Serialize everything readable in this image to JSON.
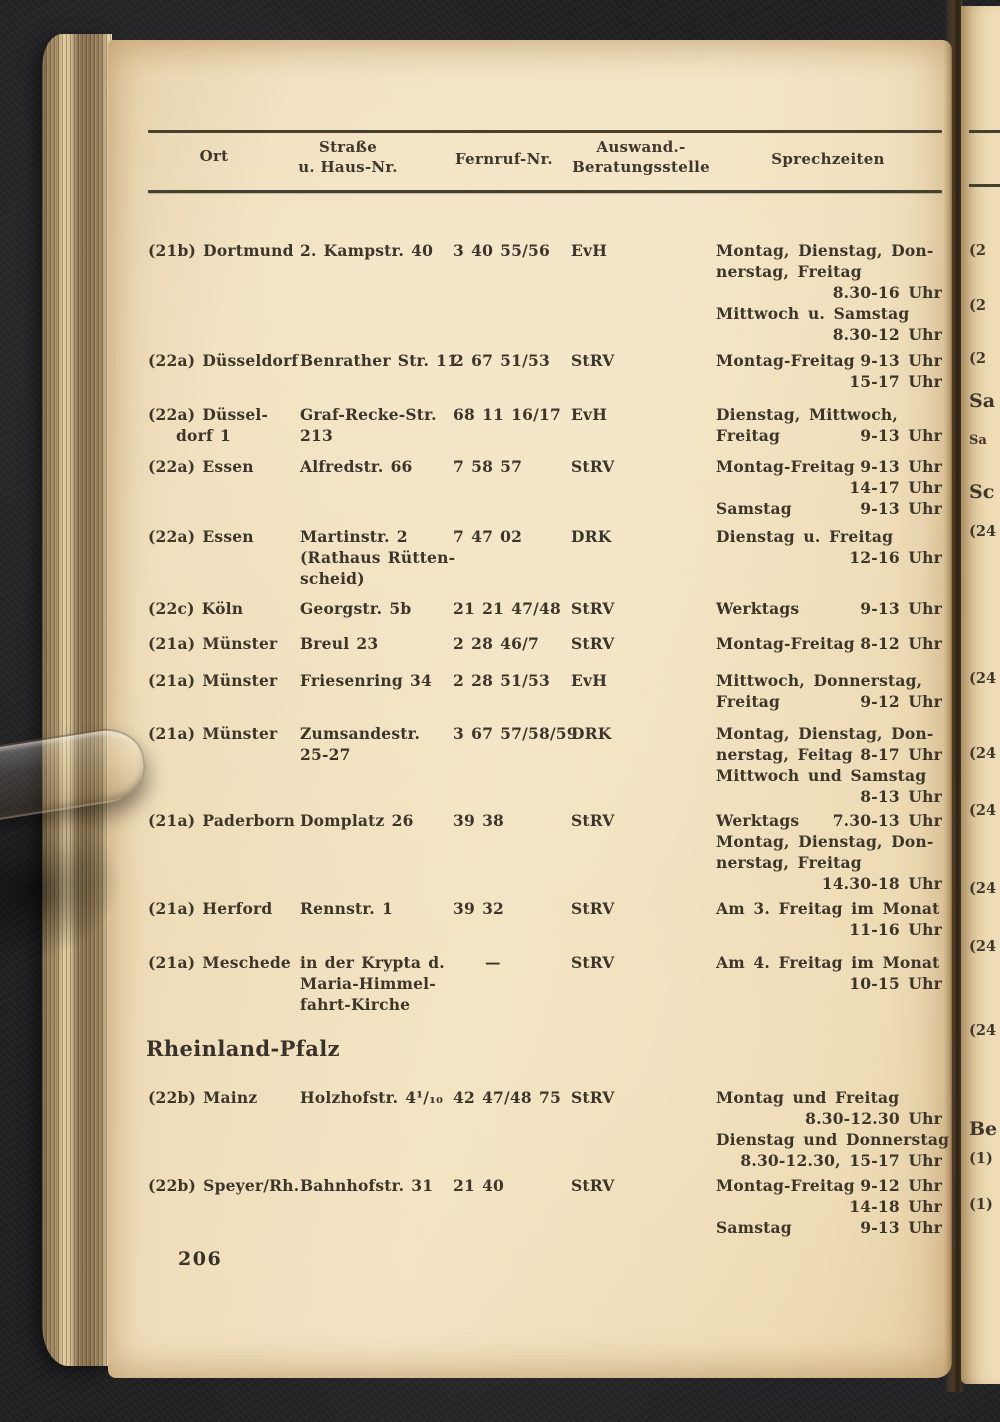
{
  "page": {
    "number": "206",
    "paper_color": "#efddb9",
    "ink_color": "#3b352a",
    "background_color": "#212123"
  },
  "table": {
    "headers": {
      "ort": "Ort",
      "strasse_line1": "Straße",
      "strasse_line2": "u. Haus-Nr.",
      "fernruf": "Fernruf-Nr.",
      "stelle_line1": "Auswand.-",
      "stelle_line2": "Beratungsstelle",
      "zeiten": "Sprechzeiten"
    },
    "rows": [
      {
        "type": "entry",
        "ort": [
          "(21b) Dortmund"
        ],
        "strasse": [
          "2. Kampstr. 40"
        ],
        "fernruf": "3 40 55/56",
        "stelle": "EvH",
        "zeiten": [
          {
            "l": "Montag, Dienstag, Don-"
          },
          {
            "l": "nerstag, Freitag"
          },
          {
            "r": "8.30-16 Uhr"
          },
          {
            "l": "Mittwoch u. Samstag"
          },
          {
            "r": "8.30-12 Uhr"
          }
        ]
      },
      {
        "type": "entry",
        "ort": [
          "(22a) Düsseldorf"
        ],
        "strasse": [
          "Benrather Str. 11"
        ],
        "fernruf": "2 67 51/53",
        "stelle": "StRV",
        "zeiten": [
          {
            "l": "Montag-Freitag",
            "r": "9-13 Uhr"
          },
          {
            "r": "15-17 Uhr"
          }
        ]
      },
      {
        "type": "entry",
        "ort": [
          "(22a) Düssel-",
          "dorf 1"
        ],
        "strasse": [
          "Graf-Recke-Str.",
          "213"
        ],
        "fernruf": "68 11 16/17",
        "stelle": "EvH",
        "zeiten": [
          {
            "l": "Dienstag, Mittwoch,"
          },
          {
            "l": "Freitag",
            "r": "9-13 Uhr"
          }
        ]
      },
      {
        "type": "entry",
        "ort": [
          "(22a) Essen"
        ],
        "strasse": [
          "Alfredstr. 66"
        ],
        "fernruf": "7 58 57",
        "stelle": "StRV",
        "zeiten": [
          {
            "l": "Montag-Freitag",
            "r": "9-13 Uhr"
          },
          {
            "r": "14-17 Uhr"
          },
          {
            "l": "Samstag",
            "r": "9-13 Uhr"
          }
        ]
      },
      {
        "type": "entry",
        "ort": [
          "(22a) Essen"
        ],
        "strasse": [
          "Martinstr. 2",
          "(Rathaus Rütten-",
          "scheid)"
        ],
        "fernruf": "7 47 02",
        "stelle": "DRK",
        "zeiten": [
          {
            "l": "Dienstag u. Freitag"
          },
          {
            "r": "12-16 Uhr"
          }
        ]
      },
      {
        "type": "entry",
        "ort": [
          "(22c) Köln"
        ],
        "strasse": [
          "Georgstr. 5b"
        ],
        "fernruf": "21 21 47/48",
        "stelle": "StRV",
        "zeiten": [
          {
            "l": "Werktags",
            "r": "9-13 Uhr"
          }
        ]
      },
      {
        "type": "entry",
        "ort": [
          "(21a) Münster"
        ],
        "strasse": [
          "Breul 23"
        ],
        "fernruf": "2 28 46/7",
        "stelle": "StRV",
        "zeiten": [
          {
            "l": "Montag-Freitag",
            "r": "8-12 Uhr"
          }
        ]
      },
      {
        "type": "entry",
        "ort": [
          "(21a) Münster"
        ],
        "strasse": [
          "Friesenring 34"
        ],
        "fernruf": "2 28 51/53",
        "stelle": "EvH",
        "zeiten": [
          {
            "l": "Mittwoch, Donnerstag,"
          },
          {
            "l": "Freitag",
            "r": "9-12 Uhr"
          }
        ]
      },
      {
        "type": "entry",
        "ort": [
          "(21a) Münster"
        ],
        "strasse": [
          "Zumsandestr.",
          "25-27"
        ],
        "fernruf": "3 67 57/58/59",
        "stelle": "DRK",
        "zeiten": [
          {
            "l": "Montag, Dienstag, Don-"
          },
          {
            "l": "nerstag, Feitag",
            "r": "8-17 Uhr"
          },
          {
            "l": "Mittwoch und Samstag"
          },
          {
            "r": "8-13 Uhr"
          }
        ]
      },
      {
        "type": "entry",
        "ort": [
          "(21a) Paderborn"
        ],
        "strasse": [
          "Domplatz 26"
        ],
        "fernruf": "39 38",
        "stelle": "StRV",
        "zeiten": [
          {
            "l": "Werktags",
            "r": "7.30-13 Uhr"
          },
          {
            "l": "Montag, Dienstag, Don-"
          },
          {
            "l": "nerstag, Freitag"
          },
          {
            "r": "14.30-18 Uhr"
          }
        ]
      },
      {
        "type": "entry",
        "ort": [
          "(21a) Herford"
        ],
        "strasse": [
          "Rennstr. 1"
        ],
        "fernruf": "39 32",
        "stelle": "StRV",
        "zeiten": [
          {
            "l": "Am 3. Freitag im Monat"
          },
          {
            "r": "11-16 Uhr"
          }
        ]
      },
      {
        "type": "entry",
        "ort": [
          "(21a) Meschede"
        ],
        "strasse": [
          "in der Krypta d.",
          "Maria-Himmel-",
          "fahrt-Kirche"
        ],
        "fernruf": "—",
        "stelle": "StRV",
        "zeiten": [
          {
            "l": "Am 4. Freitag im Monat"
          },
          {
            "r": "10-15 Uhr"
          }
        ]
      },
      {
        "type": "section",
        "title": "Rheinland-Pfalz"
      },
      {
        "type": "entry",
        "ort": [
          "(22b) Mainz"
        ],
        "strasse": [
          "Holzhofstr.  4¹/₁₀"
        ],
        "fernruf": "42 47/48 75",
        "stelle": "StRV",
        "zeiten": [
          {
            "l": "Montag und Freitag"
          },
          {
            "r": "8.30-12.30 Uhr"
          },
          {
            "l": "Dienstag und Donnerstag"
          },
          {
            "r": "8.30-12.30, 15-17 Uhr"
          }
        ]
      },
      {
        "type": "entry",
        "ort": [
          "(22b) Speyer/Rh."
        ],
        "strasse": [
          "Bahnhofstr. 31"
        ],
        "fernruf": "21 40",
        "stelle": "StRV",
        "zeiten": [
          {
            "l": "Montag-Freitag",
            "r": "9-12 Uhr"
          },
          {
            "r": "14-18 Uhr"
          },
          {
            "l": "Samstag",
            "r": "9-13 Uhr"
          }
        ]
      }
    ]
  },
  "facing_page": {
    "fragments": [
      "(2",
      "(2",
      "(2",
      "Sa",
      "Sa",
      "Sc",
      "(24",
      "(24",
      "(24",
      "(24",
      "(24",
      "(24",
      "(24",
      "Be",
      "(1)",
      "(1)"
    ]
  }
}
